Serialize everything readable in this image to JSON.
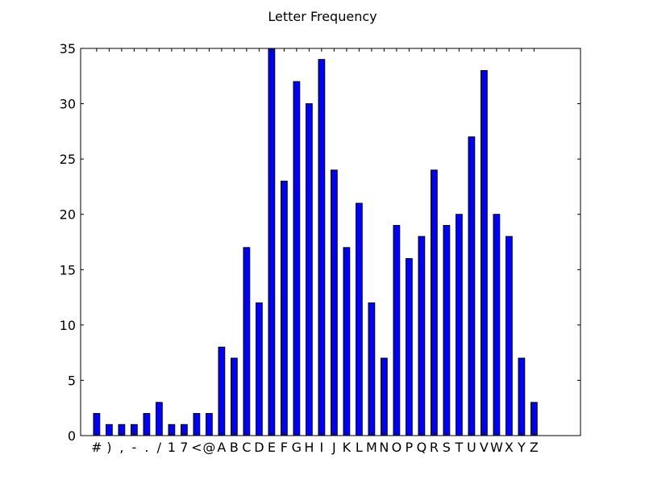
{
  "chart_data": {
    "type": "bar",
    "title": "Letter Frequency",
    "xlabel": "",
    "ylabel": "",
    "categories": [
      "#",
      ")",
      ",",
      "-",
      ".",
      "/",
      "1",
      "7",
      "<",
      "@",
      "A",
      "B",
      "C",
      "D",
      "E",
      "F",
      "G",
      "H",
      "I",
      "J",
      "K",
      "L",
      "M",
      "N",
      "O",
      "P",
      "Q",
      "R",
      "S",
      "T",
      "U",
      "V",
      "W",
      "X",
      "Y",
      "Z"
    ],
    "values": [
      2,
      1,
      1,
      1,
      2,
      3,
      1,
      1,
      2,
      2,
      8,
      7,
      17,
      12,
      35,
      23,
      32,
      30,
      34,
      24,
      17,
      21,
      12,
      7,
      19,
      16,
      18,
      24,
      19,
      20,
      27,
      33,
      20,
      18,
      7,
      3
    ],
    "ylim": [
      0,
      35
    ],
    "yticks": [
      0,
      5,
      10,
      15,
      20,
      25,
      30,
      35
    ],
    "grid": false,
    "colors": {
      "bar": "#0000ff",
      "edge": "#000000",
      "axes": "#000000",
      "background": "#ffffff"
    }
  }
}
